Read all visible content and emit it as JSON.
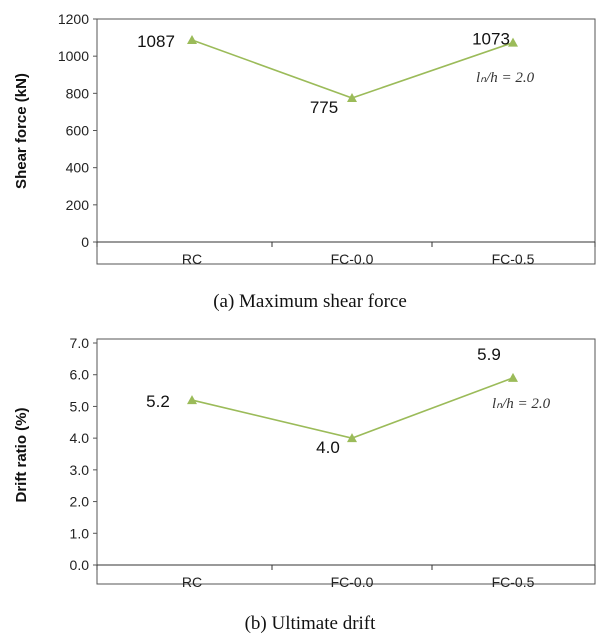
{
  "colors": {
    "series": "#9bbb59",
    "axis": "#333333",
    "frame": "#555555"
  },
  "chart_data": [
    {
      "type": "line",
      "categories": [
        "RC",
        "FC-0.0",
        "FC-0.5"
      ],
      "series": [
        {
          "values": [
            1087,
            775,
            1073
          ]
        }
      ],
      "data_labels": [
        "1087",
        "775",
        "1073"
      ],
      "ylabel": "Shear force (kN)",
      "ylim": [
        0,
        1200
      ],
      "yticks": [
        "0",
        "200",
        "400",
        "600",
        "800",
        "1000",
        "1200"
      ],
      "annotation": "lₙ/h = 2.0",
      "caption": "(a)  Maximum  shear  force",
      "marker": "triangle",
      "grid": false
    },
    {
      "type": "line",
      "categories": [
        "RC",
        "FC-0.0",
        "FC-0.5"
      ],
      "series": [
        {
          "values": [
            5.2,
            4.0,
            5.9
          ]
        }
      ],
      "data_labels": [
        "5.2",
        "4.0",
        "5.9"
      ],
      "ylabel": "Drift ratio (%)",
      "ylim": [
        0,
        7
      ],
      "yticks": [
        "0.0",
        "1.0",
        "2.0",
        "3.0",
        "4.0",
        "5.0",
        "6.0",
        "7.0"
      ],
      "annotation": "lₙ/h = 2.0",
      "caption": "(b)  Ultimate  drift",
      "marker": "triangle",
      "grid": false
    }
  ]
}
